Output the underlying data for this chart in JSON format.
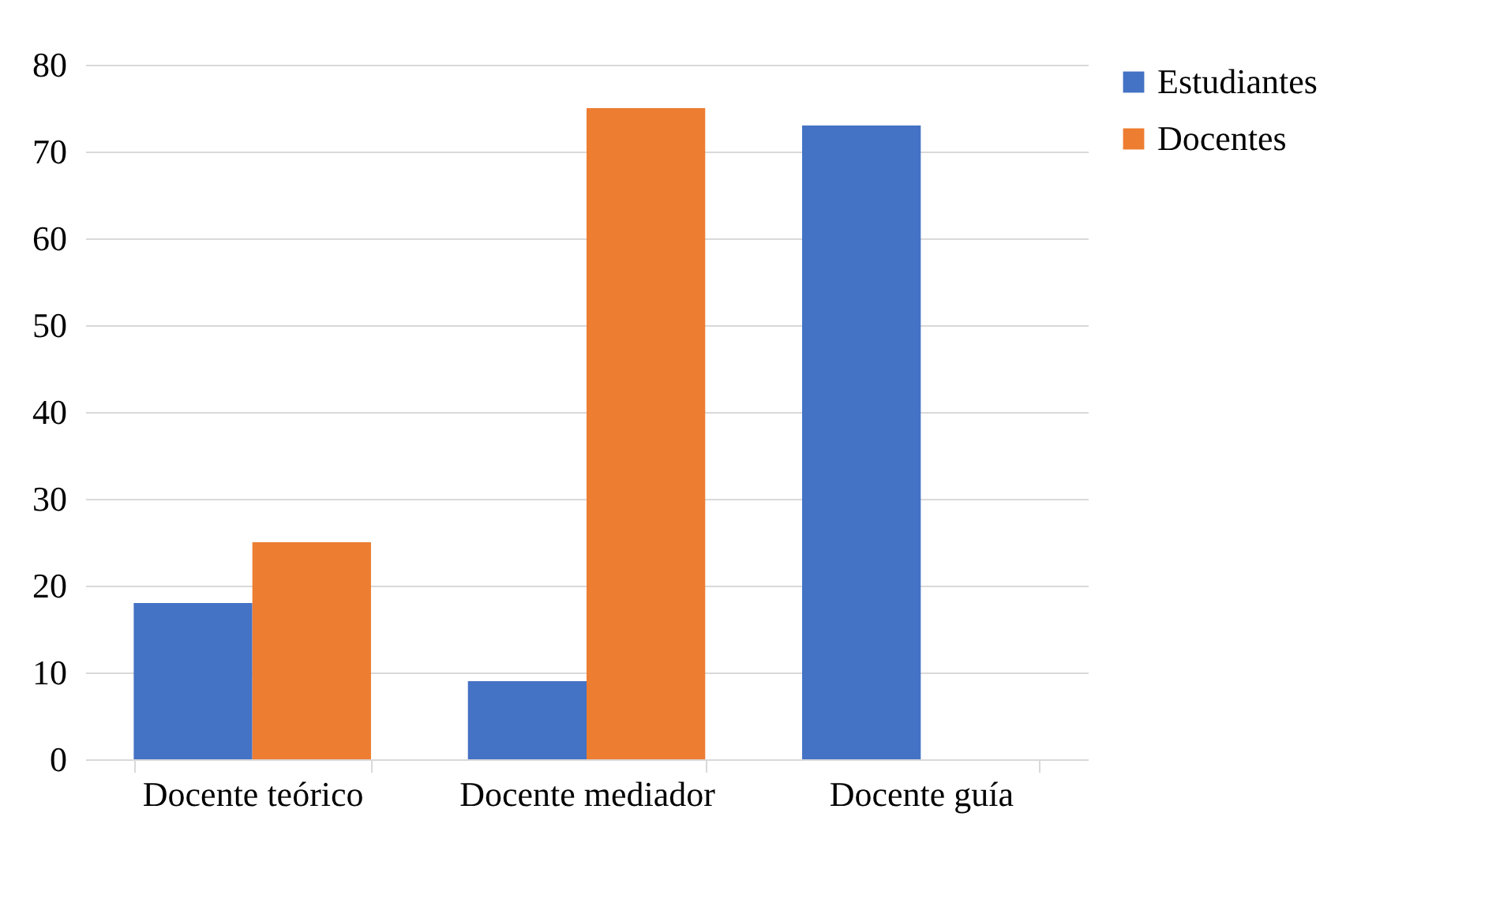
{
  "chart_data": {
    "type": "bar",
    "categories": [
      "Docente teórico",
      "Docente mediador",
      "Docente guía"
    ],
    "series": [
      {
        "name": "Estudiantes",
        "color": "#4472c4",
        "values": [
          18,
          9,
          73
        ]
      },
      {
        "name": "Docentes",
        "color": "#ed7d31",
        "values": [
          25,
          75,
          null
        ]
      }
    ],
    "ylim": [
      0,
      80
    ],
    "yticks": [
      0,
      10,
      20,
      30,
      40,
      50,
      60,
      70,
      80
    ],
    "grid": "y",
    "legend": "right"
  }
}
